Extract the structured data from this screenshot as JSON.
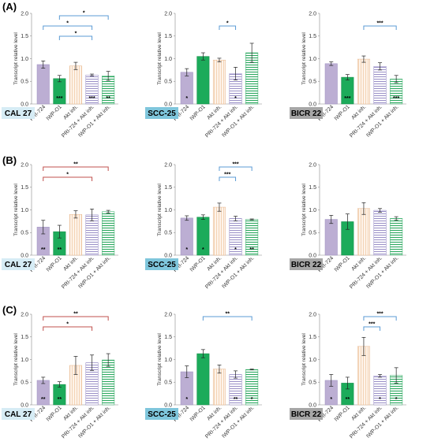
{
  "figure": {
    "row_labels": [
      "(A)",
      "(B)",
      "(C)"
    ],
    "ylabel": "Transcript relative level",
    "categories": [
      "PRI-724",
      "IWP-O1",
      "Akt inh.",
      "PRI-724 + Akt inh.",
      "IWP-O1 + Akt inh."
    ],
    "yticks": [
      "0.0",
      "0.5",
      "1.0",
      "1.5",
      "2.0"
    ],
    "cell_lines": [
      {
        "name": "CAL 27",
        "bg": "#d6ecf5"
      },
      {
        "name": "SCC-25",
        "bg": "#7fc6dc"
      },
      {
        "name": "BICR 22",
        "bg": "#a6a6a6"
      }
    ],
    "colors": {
      "pri724": "#bcaed3",
      "iwp": "#1cab5a",
      "akt": "#f9dec4",
      "pri_akt": "#b5aed6",
      "iwp_akt": "#3cb872",
      "bracket_blue": "#5b9bd5",
      "bracket_red": "#c0504d"
    }
  },
  "chart_data": [
    {
      "type": "bar",
      "row": "(A)",
      "cell_line": "CAL 27",
      "ylim": [
        0,
        2
      ],
      "values": [
        0.87,
        0.56,
        0.84,
        0.64,
        0.62
      ],
      "errors": [
        0.08,
        0.07,
        0.08,
        0.02,
        0.1
      ],
      "bar_stars": [
        "",
        "***",
        "",
        "***",
        "**"
      ],
      "brackets": [
        {
          "from": 1,
          "to": 4,
          "label": "*",
          "color": "blue",
          "level": 0
        },
        {
          "from": 0,
          "to": 3,
          "label": "*",
          "color": "blue",
          "level": 1
        },
        {
          "from": 1,
          "to": 3,
          "label": "*",
          "color": "blue",
          "level": 2
        }
      ]
    },
    {
      "type": "bar",
      "row": "(A)",
      "cell_line": "SCC-25",
      "ylim": [
        0,
        2
      ],
      "values": [
        0.7,
        1.05,
        0.97,
        0.67,
        1.13
      ],
      "errors": [
        0.08,
        0.08,
        0.04,
        0.14,
        0.21
      ],
      "bar_stars": [
        "*",
        "",
        "",
        "*",
        ""
      ],
      "brackets": [
        {
          "from": 2,
          "to": 3,
          "label": "*",
          "color": "blue",
          "level": 1
        }
      ]
    },
    {
      "type": "bar",
      "row": "(A)",
      "cell_line": "BICR 22",
      "ylim": [
        0,
        2
      ],
      "values": [
        0.89,
        0.59,
        0.99,
        0.83,
        0.55
      ],
      "errors": [
        0.04,
        0.06,
        0.07,
        0.08,
        0.08
      ],
      "bar_stars": [
        "",
        "***",
        "",
        "",
        "***"
      ],
      "brackets": [
        {
          "from": 2,
          "to": 4,
          "label": "***",
          "color": "blue",
          "level": 1
        }
      ]
    },
    {
      "type": "bar",
      "row": "(B)",
      "cell_line": "CAL 27",
      "ylim": [
        0,
        2
      ],
      "values": [
        0.62,
        0.52,
        0.9,
        0.89,
        0.96
      ],
      "errors": [
        0.15,
        0.14,
        0.08,
        0.13,
        0.03
      ],
      "bar_stars": [
        "**",
        "**",
        "",
        "",
        ""
      ],
      "brackets": [
        {
          "from": 0,
          "to": 4,
          "label": "**",
          "color": "red",
          "level": 0
        },
        {
          "from": 0,
          "to": 3,
          "label": "*",
          "color": "red",
          "level": 1
        }
      ]
    },
    {
      "type": "bar",
      "row": "(B)",
      "cell_line": "SCC-25",
      "ylim": [
        0,
        2
      ],
      "values": [
        0.82,
        0.84,
        1.06,
        0.81,
        0.79
      ],
      "errors": [
        0.05,
        0.05,
        0.09,
        0.05,
        0.01
      ],
      "bar_stars": [
        "*",
        "*",
        "",
        "*",
        "**"
      ],
      "brackets": [
        {
          "from": 2,
          "to": 4,
          "label": "***",
          "color": "blue",
          "level": 0
        },
        {
          "from": 2,
          "to": 3,
          "label": "***",
          "color": "blue",
          "level": 1
        }
      ]
    },
    {
      "type": "bar",
      "row": "(B)",
      "cell_line": "BICR 22",
      "ylim": [
        0,
        2
      ],
      "values": [
        0.79,
        0.74,
        1.03,
        0.99,
        0.81
      ],
      "errors": [
        0.09,
        0.17,
        0.13,
        0.04,
        0.04
      ],
      "bar_stars": [
        "",
        "",
        "",
        "",
        ""
      ],
      "brackets": []
    },
    {
      "type": "bar",
      "row": "(C)",
      "cell_line": "CAL 27",
      "ylim": [
        0,
        2
      ],
      "values": [
        0.54,
        0.45,
        0.87,
        0.93,
        0.99
      ],
      "errors": [
        0.07,
        0.06,
        0.2,
        0.17,
        0.14
      ],
      "bar_stars": [
        "**",
        "**",
        "",
        "",
        ""
      ],
      "brackets": [
        {
          "from": 0,
          "to": 4,
          "label": "**",
          "color": "red",
          "level": 0
        },
        {
          "from": 0,
          "to": 3,
          "label": "*",
          "color": "red",
          "level": 1
        }
      ]
    },
    {
      "type": "bar",
      "row": "(C)",
      "cell_line": "SCC-25",
      "ylim": [
        0,
        2
      ],
      "values": [
        0.73,
        1.13,
        0.79,
        0.67,
        0.78
      ],
      "errors": [
        0.13,
        0.09,
        0.09,
        0.08,
        0.01
      ],
      "bar_stars": [
        "*",
        "",
        "",
        "**",
        "*"
      ],
      "brackets": [
        {
          "from": 1,
          "to": 4,
          "label": "**",
          "color": "blue",
          "level": 0
        }
      ]
    },
    {
      "type": "bar",
      "row": "(C)",
      "cell_line": "BICR 22",
      "ylim": [
        0,
        2
      ],
      "values": [
        0.54,
        0.48,
        1.29,
        0.64,
        0.65
      ],
      "errors": [
        0.13,
        0.13,
        0.2,
        0.03,
        0.17
      ],
      "bar_stars": [
        "*",
        "**",
        "",
        "*",
        "*"
      ],
      "brackets": [
        {
          "from": 2,
          "to": 4,
          "label": "***",
          "color": "blue",
          "level": 0
        },
        {
          "from": 2,
          "to": 3,
          "label": "***",
          "color": "blue",
          "level": 1
        }
      ]
    }
  ]
}
